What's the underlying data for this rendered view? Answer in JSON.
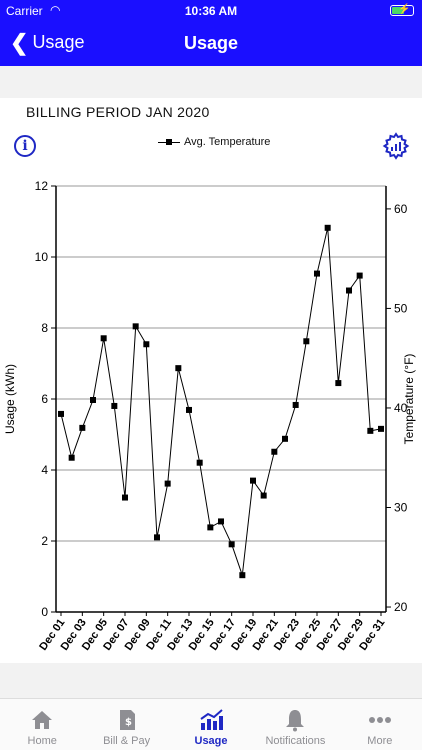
{
  "status": {
    "carrier": "Carrier",
    "time": "10:36 AM"
  },
  "nav": {
    "back_label": "Usage",
    "title": "Usage"
  },
  "billing_period": "BILLING PERIOD JAN 2020",
  "legend_label": "Avg. Temperature",
  "tabs": [
    {
      "label": "Home",
      "icon": "home-icon",
      "active": false
    },
    {
      "label": "Bill & Pay",
      "icon": "bill-icon",
      "active": false
    },
    {
      "label": "Usage",
      "icon": "usage-chart-icon",
      "active": true
    },
    {
      "label": "Notifications",
      "icon": "bell-icon",
      "active": false
    },
    {
      "label": "More",
      "icon": "more-icon",
      "active": false
    }
  ],
  "colors": {
    "brand": "#1a0fff",
    "accent": "#1f28c4",
    "inactive": "#8e8e93"
  },
  "chart_data": {
    "type": "line",
    "ylabel": "Usage (kWh)",
    "ylabel_right": "Temperature (°F)",
    "ylim": [
      0,
      12
    ],
    "y_ticks": [
      0,
      2,
      4,
      6,
      8,
      10,
      12
    ],
    "ylim_right": [
      19.5,
      62.3
    ],
    "y_ticks_right": [
      20,
      30,
      40,
      50,
      60
    ],
    "grid": true,
    "x_tick_labels": [
      "Dec 01",
      "Dec 03",
      "Dec 05",
      "Dec 07",
      "Dec 09",
      "Dec 11",
      "Dec 13",
      "Dec 15",
      "Dec 17",
      "Dec 19",
      "Dec 21",
      "Dec 23",
      "Dec 25",
      "Dec 27",
      "Dec 29",
      "Dec 31"
    ],
    "series": [
      {
        "name": "Avg. Temperature",
        "x": [
          "Dec 01",
          "Dec 02",
          "Dec 03",
          "Dec 04",
          "Dec 05",
          "Dec 06",
          "Dec 07",
          "Dec 08",
          "Dec 09",
          "Dec 10",
          "Dec 11",
          "Dec 12",
          "Dec 13",
          "Dec 14",
          "Dec 15",
          "Dec 16",
          "Dec 17",
          "Dec 18",
          "Dec 19",
          "Dec 20",
          "Dec 21",
          "Dec 22",
          "Dec 23",
          "Dec 24",
          "Dec 25",
          "Dec 26",
          "Dec 27",
          "Dec 28",
          "Dec 29",
          "Dec 30",
          "Dec 31"
        ],
        "values": [
          39.4,
          35.0,
          38.0,
          40.8,
          47.0,
          40.2,
          31.0,
          48.2,
          46.4,
          27.0,
          32.4,
          44.0,
          39.8,
          34.5,
          28.0,
          28.6,
          26.3,
          23.2,
          32.7,
          31.2,
          35.6,
          36.9,
          40.3,
          46.7,
          53.5,
          58.1,
          42.5,
          51.8,
          53.3,
          37.7,
          37.9
        ]
      }
    ]
  }
}
